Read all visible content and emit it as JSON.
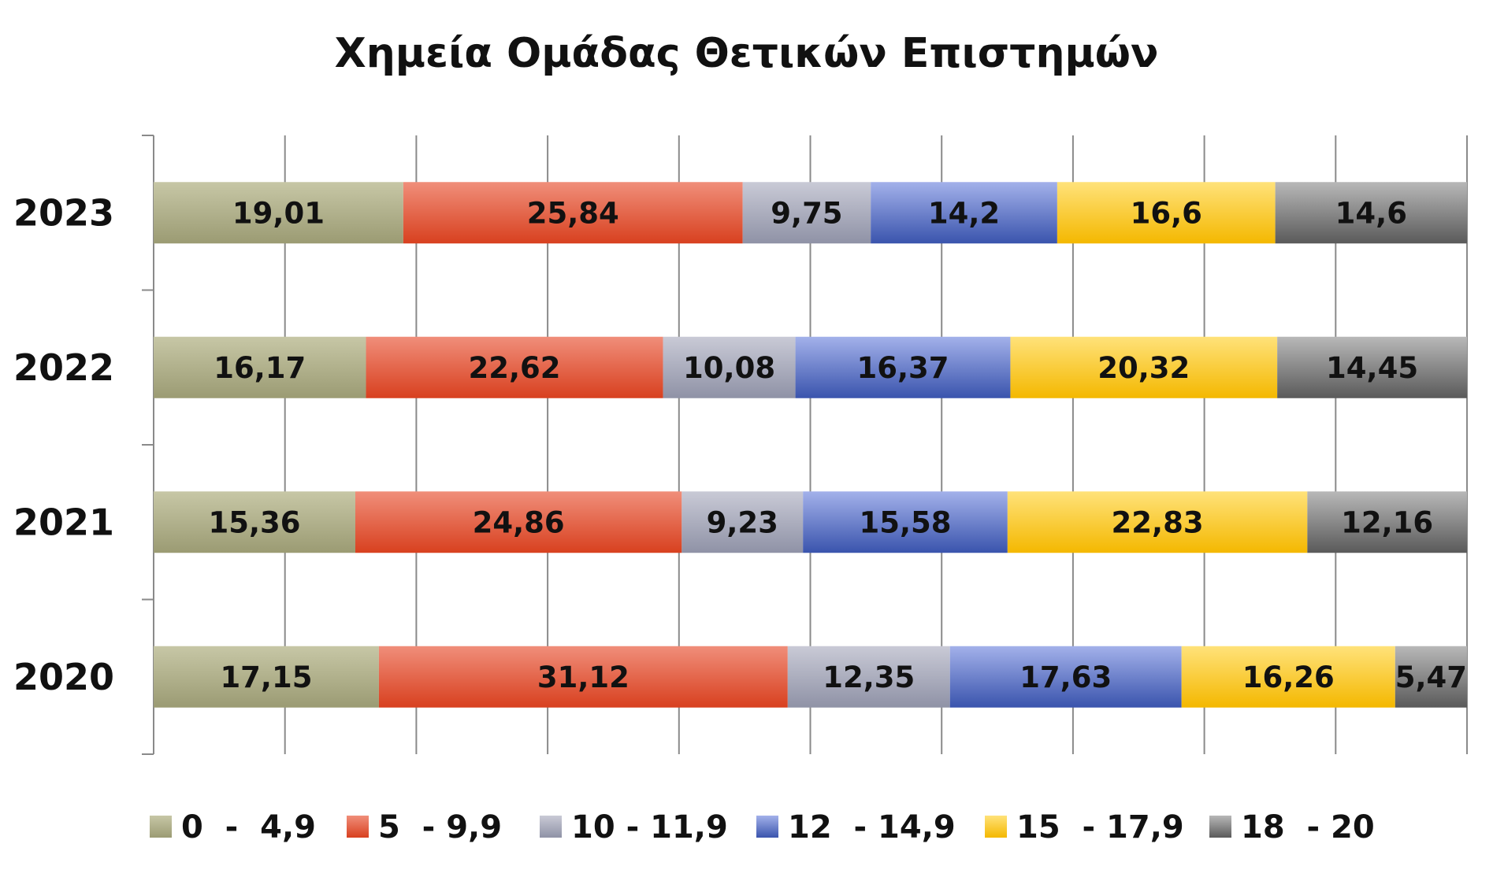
{
  "chart_data": {
    "type": "bar",
    "orientation": "horizontal",
    "stacked": "100%",
    "title": "Χημεία Ομάδας Θετικών Επιστημών",
    "categories": [
      "2023",
      "2022",
      "2021",
      "2020"
    ],
    "series": [
      {
        "name": "0  -  4,9",
        "color": "#c7c7a6",
        "color_dark": "#9b9b73",
        "values": [
          19.01,
          16.17,
          15.36,
          17.15
        ],
        "labels": [
          "19,01",
          "16,17",
          "15,36",
          "17,15"
        ]
      },
      {
        "name": "5  - 9,9",
        "color": "#f08e7a",
        "color_dark": "#d8401f",
        "values": [
          25.84,
          22.62,
          24.86,
          31.12
        ],
        "labels": [
          "25,84",
          "22,62",
          "24,86",
          "31,12"
        ]
      },
      {
        "name": "10 - 11,9",
        "color": "#c9cad6",
        "color_dark": "#8f92a6",
        "values": [
          9.75,
          10.08,
          9.23,
          12.35
        ],
        "labels": [
          "9,75",
          "10,08",
          "9,23",
          "12,35"
        ]
      },
      {
        "name": "12  - 14,9",
        "color": "#a3b1ea",
        "color_dark": "#3a54ad",
        "values": [
          14.2,
          16.37,
          15.58,
          17.63
        ],
        "labels": [
          "14,2",
          "16,37",
          "15,58",
          "17,63"
        ]
      },
      {
        "name": "15  - 17,9",
        "color": "#ffe27a",
        "color_dark": "#f4b800",
        "values": [
          16.6,
          20.32,
          22.83,
          16.26
        ],
        "labels": [
          "16,6",
          "20,32",
          "22,83",
          "16,26"
        ]
      },
      {
        "name": "18  - 20",
        "color": "#b8b8b8",
        "color_dark": "#5a5a5a",
        "values": [
          14.6,
          14.45,
          12.16,
          5.47
        ],
        "labels": [
          "14,6",
          "14,45",
          "12,16",
          "5,47"
        ]
      }
    ],
    "xlim": [
      0,
      100
    ],
    "gridlines": 10,
    "grid": true,
    "legend_position": "bottom"
  }
}
